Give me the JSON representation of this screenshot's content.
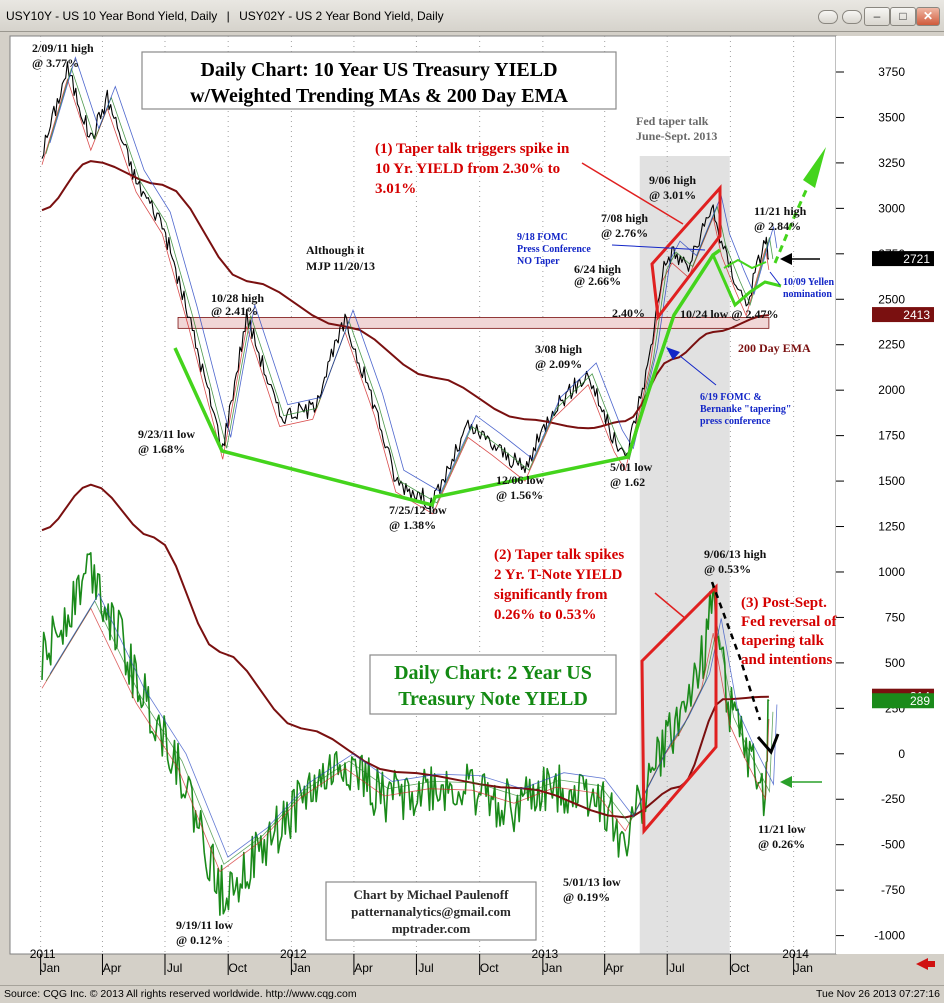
{
  "window": {
    "tab1": "USY10Y - US 10 Year Bond Yield, Daily",
    "tab2": "USY02Y - US 2 Year Bond Yield, Daily"
  },
  "status": {
    "source": "Source: CQG Inc. © 2013 All rights reserved worldwide. http://www.cqg.com",
    "timestamp": "Tue Nov 26 2013 07:27:16"
  },
  "colors": {
    "yield10": "#000000",
    "yield2": "#1a8a1a",
    "ema": "#7a1010",
    "trend": "#44d41c",
    "taper": "#e02020",
    "annotation": "#d50000",
    "note": "#1326c7"
  },
  "chart_data": {
    "type": "line",
    "x_axis": {
      "year_labels": [
        "2011",
        "2012",
        "2013",
        "2014"
      ],
      "month_labels": [
        "Jan",
        "Apr",
        "Jul",
        "Oct",
        "Jan",
        "Apr",
        "Jul",
        "Oct",
        "Jan",
        "Apr",
        "Jul",
        "Oct",
        "Jan"
      ]
    },
    "y_axis": {
      "ticks": [
        "3750",
        "3500",
        "3250",
        "3000",
        "2750",
        "2500",
        "2250",
        "2000",
        "1750",
        "1500",
        "1250",
        "1000",
        "750",
        "500",
        "250",
        "0",
        "-250",
        "-500",
        "-750",
        "-1000"
      ],
      "range": [
        -1000,
        3850
      ]
    },
    "last_values": [
      {
        "label": "2721",
        "value": 2721,
        "color": "#000000"
      },
      {
        "label": "2413",
        "value": 2413,
        "color": "#7a1010"
      },
      {
        "label": "314",
        "value": 314,
        "color": "#7a1010"
      },
      {
        "label": "289",
        "value": 289,
        "color": "#1a8a1a"
      }
    ],
    "series": [
      {
        "name": "",
        "color": "#000000",
        "x": [
          "2011-01-03",
          "2011-02-09",
          "2011-03-15",
          "2011-04-08",
          "2011-05-20",
          "2011-06-27",
          "2011-08-05",
          "2011-09-23",
          "2011-10-28",
          "2011-12-15",
          "2012-02-01",
          "2012-03-19",
          "2012-05-01",
          "2012-06-01",
          "2012-07-25",
          "2012-09-14",
          "2012-10-20",
          "2012-12-06",
          "2013-01-15",
          "2013-03-08",
          "2013-04-15",
          "2013-05-01",
          "2013-06-05",
          "2013-06-24",
          "2013-07-08",
          "2013-08-01",
          "2013-09-06",
          "2013-09-18",
          "2013-10-09",
          "2013-10-24",
          "2013-11-21",
          "2013-11-26"
        ],
        "y": [
          3300,
          3770,
          3380,
          3610,
          3150,
          2920,
          2400,
          1680,
          2410,
          1860,
          1900,
          2380,
          1920,
          1500,
          1380,
          1800,
          1700,
          1560,
          1900,
          2090,
          1720,
          1620,
          2170,
          2660,
          2760,
          2680,
          3010,
          2800,
          2600,
          2470,
          2840,
          2721
        ]
      },
      {
        "name": "",
        "color": "#7a1010",
        "x": [
          "2011-01-03",
          "2011-03-15",
          "2011-06-27",
          "2011-10-28",
          "2012-03-19",
          "2012-07-25",
          "2012-12-06",
          "2013-03-08",
          "2013-05-01",
          "2013-07-08",
          "2013-09-06",
          "2013-11-26"
        ],
        "y": [
          2990,
          3260,
          3130,
          2600,
          2350,
          2070,
          1840,
          1790,
          1830,
          2170,
          2320,
          2413
        ]
      },
      {
        "name": "",
        "color": "#1a8a1a",
        "x": [
          "2011-01-03",
          "2011-03-15",
          "2011-05-20",
          "2011-07-20",
          "2011-09-19",
          "2011-11-15",
          "2012-01-15",
          "2012-03-19",
          "2012-05-15",
          "2012-07-20",
          "2012-09-20",
          "2012-11-20",
          "2013-01-20",
          "2013-03-20",
          "2013-05-01",
          "2013-06-24",
          "2013-07-20",
          "2013-08-20",
          "2013-09-06",
          "2013-09-30",
          "2013-10-24",
          "2013-11-21",
          "2013-11-26"
        ],
        "y": [
          500,
          1050,
          400,
          -50,
          -760,
          -560,
          -250,
          -50,
          -240,
          -190,
          -200,
          -290,
          -180,
          -220,
          -480,
          20,
          200,
          500,
          880,
          250,
          0,
          -260,
          289
        ]
      },
      {
        "name": "",
        "color": "#7a1010",
        "x": [
          "2011-01-03",
          "2011-03-15",
          "2011-06-15",
          "2011-09-19",
          "2012-01-15",
          "2012-06-01",
          "2012-12-01",
          "2013-05-01",
          "2013-07-20",
          "2013-09-20",
          "2013-11-26"
        ],
        "y": [
          1230,
          1480,
          1190,
          560,
          140,
          -100,
          -190,
          -350,
          -180,
          300,
          314
        ]
      }
    ]
  },
  "boxes": {
    "title10": [
      "Daily Chart: 10 Year US Treasury YIELD",
      "w/Weighted Trending MAs & 200 Day EMA"
    ],
    "title2": [
      "Daily Chart: 2 Year US",
      "Treasury Note YIELD"
    ],
    "credit": [
      "Chart by Michael Paulenoff",
      "patternanalytics@gmail.com",
      "mptrader.com"
    ]
  },
  "annotations": {
    "high_2_09_11": [
      "2/09/11 high",
      "@ 3.77%"
    ],
    "high_10_28": [
      "10/28 high",
      "@ 2.41%"
    ],
    "low_9_23_11": [
      "9/23/11 low",
      "@ 1.68%"
    ],
    "low_7_25_12": [
      "7/25/12 low",
      "@ 1.38%"
    ],
    "low_12_06": [
      "12/06 low",
      "@ 1.56%"
    ],
    "high_3_08": [
      "3/08 high",
      "@ 2.09%"
    ],
    "low_5_01": [
      "5/01 low",
      "@ 1.62"
    ],
    "although": [
      "Although it",
      "MJP 11/20/13"
    ],
    "fed_taper_talk": [
      "Fed taper talk",
      "June-Sept. 2013"
    ],
    "taper1": [
      "(1) Taper talk triggers spike in",
      "10 Yr. YIELD from 2.30% to",
      "3.01%"
    ],
    "high_9_06": [
      "9/06 high",
      "@ 3.01%"
    ],
    "high_7_08": [
      "7/08 high",
      "@ 2.76%"
    ],
    "high_6_24": [
      "6/24 high",
      "@ 2.66%"
    ],
    "fomc_9_18": [
      "9/18 FOMC",
      "Press Conference",
      "NO Taper"
    ],
    "high_11_21": [
      "11/21 high",
      "@ 2.84%"
    ],
    "yellen": [
      "10/09 Yellen",
      "nomination"
    ],
    "low_10_24": "10/24 low @ 2.47%",
    "level_240": "2.40%",
    "ema_label": "200 Day EMA",
    "fomc_6_19": [
      "6/19 FOMC &",
      "Bernanke \"tapering\"",
      "press conference"
    ],
    "taper2": [
      "(2) Taper talk spikes",
      "2 Yr. T-Note YIELD",
      "significantly from",
      "0.26% to 0.53%"
    ],
    "high_9_06_13": [
      "9/06/13 high",
      "@ 0.53%"
    ],
    "taper3": [
      "(3) Post-Sept.",
      "Fed reversal of",
      "tapering talk",
      "and intentions"
    ],
    "low_11_21": [
      "11/21 low",
      "@ 0.26%"
    ],
    "low_5_01_13": [
      "5/01/13 low",
      "@ 0.19%"
    ],
    "low_9_19_11": [
      "9/19/11 low",
      "@ 0.12%"
    ]
  }
}
